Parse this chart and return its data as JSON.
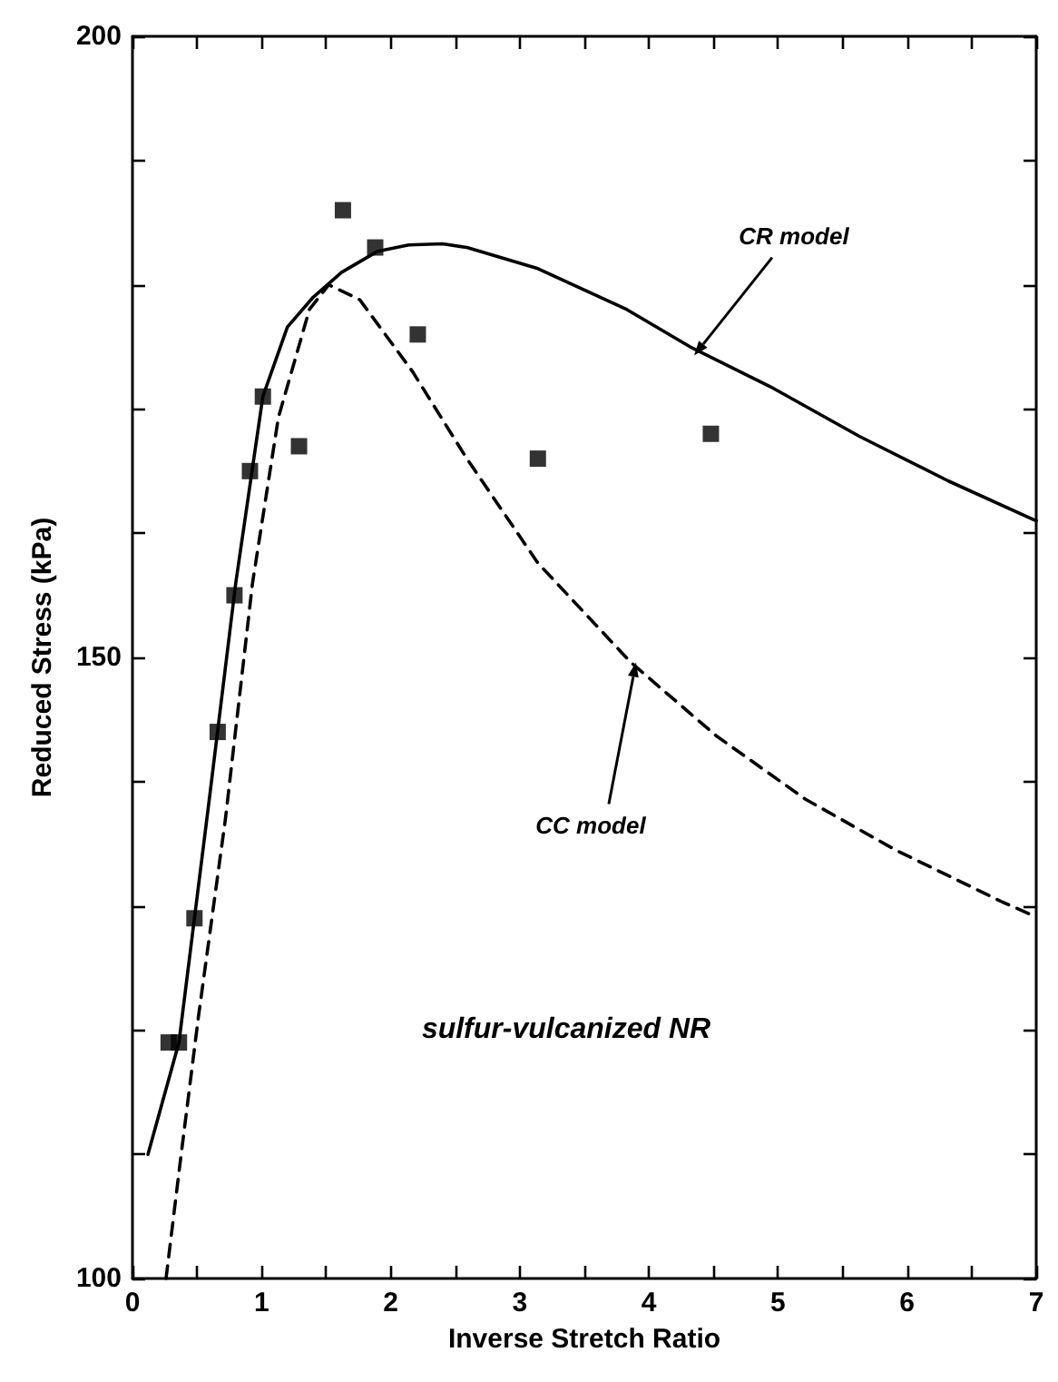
{
  "chart_data": {
    "type": "scatter",
    "xlabel": "Inverse Stretch Ratio",
    "ylabel": "Reduced Stress (kPa)",
    "xlim": [
      0,
      7
    ],
    "ylim": [
      100,
      200
    ],
    "xticks": [
      0,
      {
        "value": 0.5,
        "label": null
      },
      1,
      {
        "value": 1.5,
        "label": null
      },
      2,
      {
        "value": 2.5,
        "label": null
      },
      3,
      {
        "value": 3.5,
        "label": null
      },
      4,
      {
        "value": 4.5,
        "label": null
      },
      5,
      {
        "value": 5.5,
        "label": null
      },
      6,
      {
        "value": 6.5,
        "label": null
      },
      7
    ],
    "yticks": [
      100,
      {
        "value": 110,
        "label": null
      },
      {
        "value": 120,
        "label": null
      },
      {
        "value": 130,
        "label": null
      },
      {
        "value": 140,
        "label": null
      },
      150,
      {
        "value": 160,
        "label": null
      },
      {
        "value": 170,
        "label": null
      },
      {
        "value": 180,
        "label": null
      },
      {
        "value": 190,
        "label": null
      },
      200
    ],
    "grid": false,
    "series": [
      {
        "marker": "square",
        "color": "#000000",
        "x": [
          0.28,
          0.36,
          0.48,
          0.66,
          0.79,
          0.91,
          1.01,
          1.29,
          1.63,
          1.88,
          2.21,
          3.14,
          4.48
        ],
        "values": [
          119,
          119,
          129,
          144,
          155,
          165,
          171,
          167,
          186,
          183,
          176,
          166,
          168
        ]
      },
      {
        "type": "line",
        "line_style": "solid",
        "marker": "none",
        "color": "#000000",
        "x": [
          0.12,
          0.36,
          0.6,
          0.8,
          1.01,
          1.2,
          1.4,
          1.62,
          1.9,
          2.14,
          2.4,
          2.59,
          3.14,
          3.83,
          4.32,
          4.94,
          5.63,
          6.32,
          7
        ],
        "values": [
          110,
          119,
          139,
          156,
          171,
          176.6,
          179,
          181,
          182.7,
          183.2,
          183.3,
          183,
          181.3,
          178,
          175,
          171.8,
          167.8,
          164.2,
          161
        ]
      },
      {
        "type": "line",
        "line_style": "dashed",
        "marker": "none",
        "color": "#000000",
        "x": [
          0.26,
          0.37,
          0.51,
          0.72,
          0.93,
          1.13,
          1.37,
          1.52,
          1.76,
          2.17,
          2.59,
          3.14,
          3.86,
          4.52,
          5.21,
          5.91,
          6.74,
          7
        ],
        "values": [
          100,
          109.4,
          121,
          137,
          156,
          169.3,
          178,
          180,
          178.8,
          173,
          166,
          157.6,
          149.6,
          143.7,
          138.6,
          134.5,
          130.3,
          129.1
        ]
      }
    ],
    "annotations": [
      {
        "text": "CR model",
        "x": 4.35,
        "y": 174.3
      },
      {
        "text": "CC model",
        "x": 3.9,
        "y": 149.6
      },
      "sulfur-vulcanized NR"
    ]
  }
}
